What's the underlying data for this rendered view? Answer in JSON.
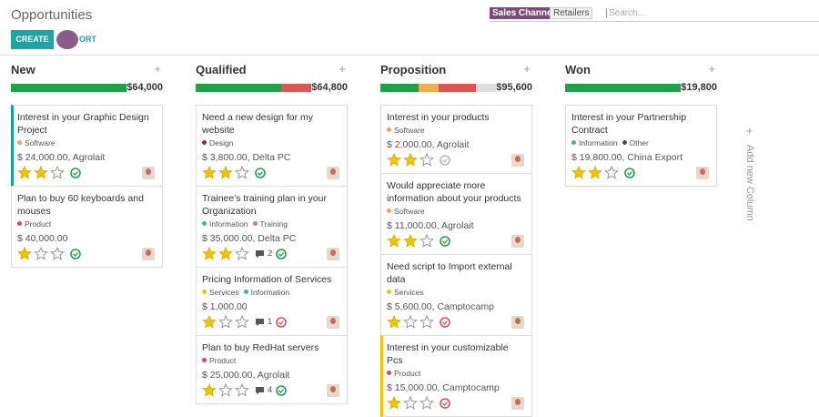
{
  "header": {
    "title": "Opportunities",
    "create": "CREATE",
    "import": "ORT",
    "search": {
      "facet": "Sales Channel",
      "value": "Retailers",
      "placeholder": "Search..."
    }
  },
  "add_column": "Add new Column",
  "columns": [
    {
      "name": "New",
      "total": "$64,000",
      "progress": [
        {
          "color": "#21a04a",
          "share": 100
        }
      ],
      "cards": [
        {
          "title": "Interest in your Graphic Design Project",
          "tags": [
            {
              "name": "Software",
              "color": "#f0a05a"
            }
          ],
          "amount": "$ 24,000.00, Agrolait",
          "priority": 2,
          "activity": "#21a04a",
          "highlight": "#1a9e96"
        },
        {
          "title": "Plan to buy 60 keyboards and mouses",
          "tags": [
            {
              "name": "Product",
              "color": "#e04848"
            }
          ],
          "amount": "$ 40,000.00",
          "priority": 1,
          "activity": "#21a04a"
        }
      ]
    },
    {
      "name": "Qualified",
      "total": "$64,800",
      "progress": [
        {
          "color": "#21a04a",
          "share": 74
        },
        {
          "color": "#e05454",
          "share": 26
        }
      ],
      "cards": [
        {
          "title": "Need a new design for my website",
          "tags": [
            {
              "name": "Design",
              "color": "#8e2c3e"
            }
          ],
          "amount": "$ 3,800.00, Delta PC",
          "priority": 2,
          "activity": "#21a04a"
        },
        {
          "title": "Trainee's training plan in your Organization",
          "tags": [
            {
              "name": "Information",
              "color": "#3fb1b5"
            },
            {
              "name": "Training",
              "color": "#e86e78"
            }
          ],
          "amount": "$ 35,000.00, Delta PC",
          "priority": 2,
          "messages": "2",
          "activity": "#21a04a"
        },
        {
          "title": "Pricing Information of Services",
          "tags": [
            {
              "name": "Services",
              "color": "#f2c300"
            },
            {
              "name": "Information",
              "color": "#3fb1b5"
            }
          ],
          "amount": "$ 1,000.00",
          "priority": 1,
          "messages": "1",
          "activity": "#d9534f"
        },
        {
          "title": "Plan to buy RedHat servers",
          "tags": [
            {
              "name": "Product",
              "color": "#e04848"
            }
          ],
          "amount": "$ 25,000.00, Agrolait",
          "priority": 1,
          "messages": "4",
          "activity": "#21a04a"
        }
      ]
    },
    {
      "name": "Proposition",
      "total": "$95,600",
      "progress": [
        {
          "color": "#21a04a",
          "share": 33
        },
        {
          "color": "#f0ad4e",
          "share": 17
        },
        {
          "color": "#e05454",
          "share": 33
        },
        {
          "color": "#dddddd",
          "share": 17
        }
      ],
      "cards": [
        {
          "title": "Interest in your products",
          "tags": [
            {
              "name": "Software",
              "color": "#f0a05a"
            }
          ],
          "amount": "$ 2,000.00, Agrolait",
          "priority": 2,
          "activity": "#bbbbbb"
        },
        {
          "title": "Would appreciate more information about your products",
          "tags": [
            {
              "name": "Software",
              "color": "#f0a05a"
            }
          ],
          "amount": "$ 11,000.00, Agrolait",
          "priority": 2,
          "activity": "#21a04a"
        },
        {
          "title": "Need script to Import external data",
          "tags": [
            {
              "name": "Services",
              "color": "#f2c300"
            }
          ],
          "amount": "$ 5,600.00, Camptocamp",
          "priority": 1,
          "activity": "#d9534f"
        },
        {
          "title": "Interest in your customizable Pcs",
          "tags": [
            {
              "name": "Product",
              "color": "#e04848"
            }
          ],
          "amount": "$ 15,000.00, Camptocamp",
          "priority": 1,
          "activity": "#d9534f",
          "highlight": "#f2c300"
        }
      ]
    },
    {
      "name": "Won",
      "total": "$19,800",
      "progress": [
        {
          "color": "#21a04a",
          "share": 100
        }
      ],
      "cards": [
        {
          "title": "Interest in your Partnership Contract",
          "tags": [
            {
              "name": "Information",
              "color": "#3fb1b5"
            },
            {
              "name": "Other",
              "color": "#4a4a6a"
            }
          ],
          "amount": "$ 19,800.00, China Export",
          "priority": 2,
          "activity": "#21a04a"
        }
      ]
    }
  ]
}
